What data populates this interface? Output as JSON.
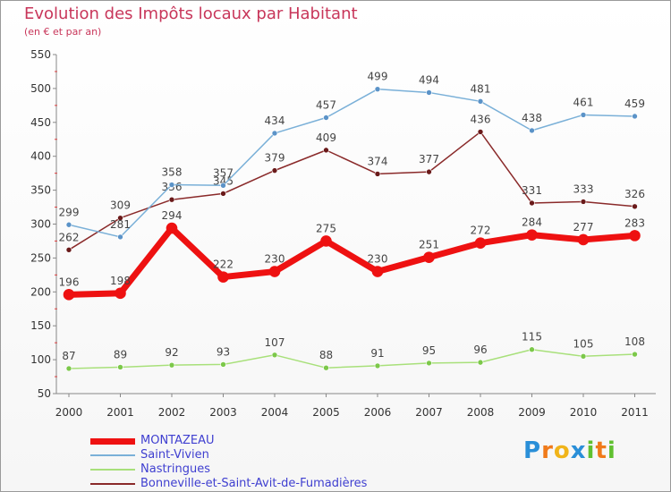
{
  "chart_data": {
    "type": "line",
    "title": "Evolution des Impôts locaux par Habitant",
    "subtitle": "(en € et par an)",
    "x": [
      "2000",
      "2001",
      "2002",
      "2003",
      "2004",
      "2005",
      "2006",
      "2007",
      "2008",
      "2009",
      "2010",
      "2011"
    ],
    "ylim": [
      50,
      550
    ],
    "yticks": [
      50,
      100,
      150,
      200,
      250,
      300,
      350,
      400,
      450,
      500,
      550
    ],
    "grid": false,
    "legend_position": "bottom-left",
    "series": [
      {
        "name": "MONTAZEAU",
        "color": "#ee1111",
        "marker": "#ee1111",
        "width": 7,
        "values": [
          196,
          198,
          294,
          222,
          230,
          275,
          230,
          251,
          272,
          284,
          277,
          283
        ]
      },
      {
        "name": "Saint-Vivien",
        "color": "#7ab0d8",
        "marker": "#5b93c8",
        "width": 1.5,
        "values": [
          299,
          281,
          358,
          357,
          434,
          457,
          499,
          494,
          481,
          438,
          461,
          459
        ]
      },
      {
        "name": "Nastringues",
        "color": "#a8e07a",
        "marker": "#7cc84a",
        "width": 1.5,
        "values": [
          87,
          89,
          92,
          93,
          107,
          88,
          91,
          95,
          96,
          115,
          105,
          108
        ]
      },
      {
        "name": "Bonneville-et-Saint-Avit-de-Fumadières",
        "color": "#8a2a2a",
        "marker": "#6a1a1a",
        "width": 1.5,
        "values": [
          262,
          309,
          336,
          345,
          379,
          409,
          374,
          377,
          436,
          331,
          333,
          326
        ]
      }
    ]
  },
  "logo": {
    "letters": [
      "P",
      "r",
      "o",
      "x",
      "i",
      "t",
      "i"
    ],
    "colors": [
      "#2a8fd8",
      "#f07a1a",
      "#f0b41a",
      "#2a8fd8",
      "#60c030",
      "#f07a1a",
      "#60c030"
    ]
  }
}
